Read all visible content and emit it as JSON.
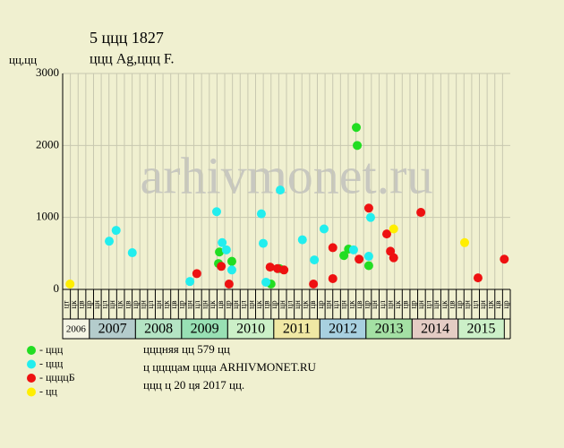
{
  "chart_data": {
    "type": "scatter",
    "title": "5 ццц 1827",
    "subtitle": "ццц Ag,ццц F.",
    "y_label": "цц,цц",
    "watermark": "arhivmonet.ru",
    "xlim": [
      2006.42,
      2016.13
    ],
    "ylim": [
      0,
      3000
    ],
    "yticks": [
      0,
      1000,
      2000,
      3000
    ],
    "grid": true,
    "years": [
      "2006",
      "2007",
      "2008",
      "2009",
      "2010",
      "2011",
      "2012",
      "2013",
      "2014",
      "2015"
    ],
    "year_colors": [
      "#f4f4e4",
      "#b4cccc",
      "#b4e4c4",
      "#98e0b4",
      "#ccf0c8",
      "#f0e8a4",
      "#a8d0e0",
      "#a4e0a4",
      "#e4ccc4",
      "#ccf0c8"
    ],
    "cells": [
      "цт",
      "цк",
      "цв",
      "цр",
      "цн",
      "цл",
      "цн",
      "цк",
      "цв",
      "цр",
      "цн",
      "цл",
      "цн",
      "цк",
      "цв",
      "цр",
      "цн",
      "цл",
      "цн",
      "цк",
      "цв",
      "цр",
      "цн",
      "цл",
      "цн",
      "цк",
      "цв",
      "цр",
      "цн",
      "цл",
      "цн",
      "цк",
      "цв",
      "цр",
      "цн",
      "цл",
      "цн",
      "цк",
      "цв",
      "цр",
      "цн",
      "цл",
      "цн",
      "цк",
      "цв",
      "цр",
      "цн",
      "цл",
      "цн",
      "цк",
      "цв",
      "цр",
      "цн",
      "цл",
      "цн",
      "цк",
      "цв",
      "цр"
    ],
    "series": [
      {
        "name": "ццц",
        "color": "#22dd22",
        "x": [
          2009.82,
          2009.8,
          2010.09,
          2010.94,
          2011.12,
          2012.52,
          2012.62,
          2012.79,
          2012.81,
          2013.06
        ],
        "values": [
          520,
          360,
          390,
          75,
          290,
          470,
          560,
          2250,
          2000,
          330
        ]
      },
      {
        "name": "ццц",
        "color": "#22eeee",
        "x": [
          2007.43,
          2007.58,
          2007.93,
          2009.18,
          2009.76,
          2009.88,
          2009.97,
          2010.09,
          2010.73,
          2010.77,
          2010.83,
          2011.14,
          2011.62,
          2011.88,
          2012.09,
          2012.73,
          2013.06,
          2013.1
        ],
        "values": [
          670,
          820,
          510,
          110,
          1080,
          650,
          550,
          270,
          1050,
          640,
          100,
          1380,
          690,
          410,
          840,
          550,
          460,
          1000
        ]
      },
      {
        "name": "ццццБ",
        "color": "#ee1111",
        "x": [
          2009.33,
          2009.86,
          2010.03,
          2010.92,
          2011.08,
          2011.22,
          2011.86,
          2012.28,
          2012.28,
          2012.85,
          2013.06,
          2013.45,
          2013.53,
          2013.6,
          2014.19,
          2015.43,
          2016.0
        ],
        "values": [
          220,
          320,
          75,
          310,
          290,
          270,
          75,
          150,
          580,
          420,
          1130,
          770,
          530,
          440,
          1070,
          160,
          420
        ]
      },
      {
        "name": "цц",
        "color": "#ffee00",
        "x": [
          2006.58,
          2013.6,
          2015.14
        ],
        "values": [
          75,
          840,
          650
        ]
      }
    ],
    "notes": [
      "цццняя цц 579 цц",
      "ц ццццам ццца ARHIVMONET.RU",
      "ццц ц 20 ця 2017 цц."
    ]
  }
}
